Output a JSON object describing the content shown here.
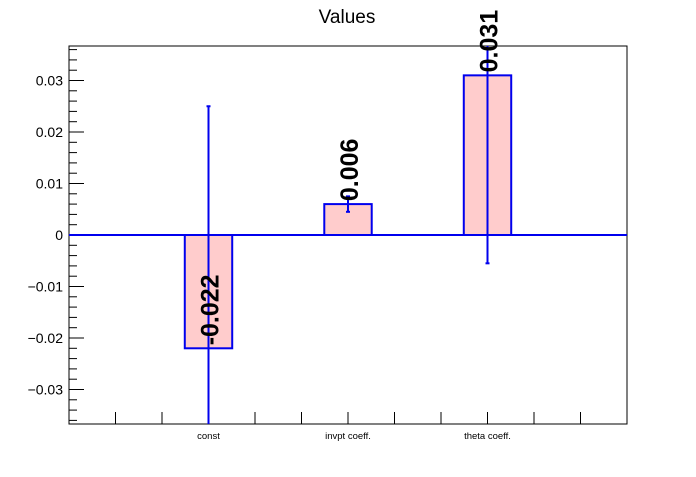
{
  "chart_data": {
    "type": "bar",
    "title": "Values",
    "xlabel": "",
    "ylabel": "",
    "categories": [
      "const",
      "invpt coeff.",
      "theta coeff."
    ],
    "values": [
      -0.022,
      0.006,
      0.031
    ],
    "value_labels": [
      "-0.022",
      "0.006",
      "0.031"
    ],
    "errors": [
      0.047,
      0.0015,
      0.0365
    ],
    "ylim": [
      -0.0367,
      0.0367
    ],
    "yticks": [
      -0.03,
      -0.02,
      -0.01,
      0,
      0.01,
      0.02,
      0.03
    ],
    "ytick_labels": [
      "−0.03",
      "−0.02",
      "−0.01",
      "0",
      "0.01",
      "0.02",
      "0.03"
    ],
    "grid": false,
    "legend": "none",
    "colors": {
      "bar_fill": "#ffcccc",
      "bar_edge": "#0000ee",
      "error_bar": "#0000ee",
      "axis": "#000000",
      "label": "#000000"
    }
  }
}
